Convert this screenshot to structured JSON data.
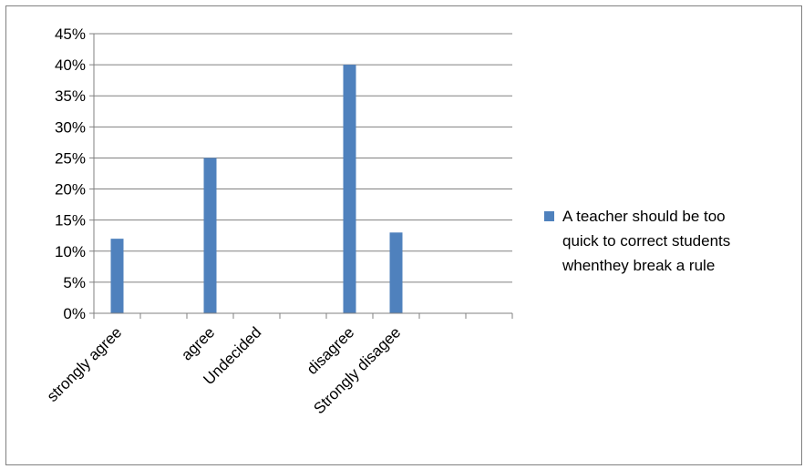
{
  "chart_data": {
    "type": "bar",
    "categories": [
      "strongly agree",
      "agree",
      "Undecided",
      "disagree",
      "Strongly disagee"
    ],
    "series": [
      {
        "name": "A teacher should be too quick to correct students whenthey break a rule",
        "values": [
          0.12,
          0.25,
          0,
          0.4,
          0.13
        ],
        "color": "#4F81BD"
      }
    ],
    "ylim": [
      0,
      0.45
    ],
    "y_ticks": [
      "0%",
      "5%",
      "10%",
      "15%",
      "20%",
      "25%",
      "30%",
      "35%",
      "40%",
      "45%"
    ],
    "grid": true,
    "legend_position": "right",
    "legend_lines": [
      "A teacher should be too",
      "quick to correct students",
      "whenthey break a rule"
    ]
  }
}
